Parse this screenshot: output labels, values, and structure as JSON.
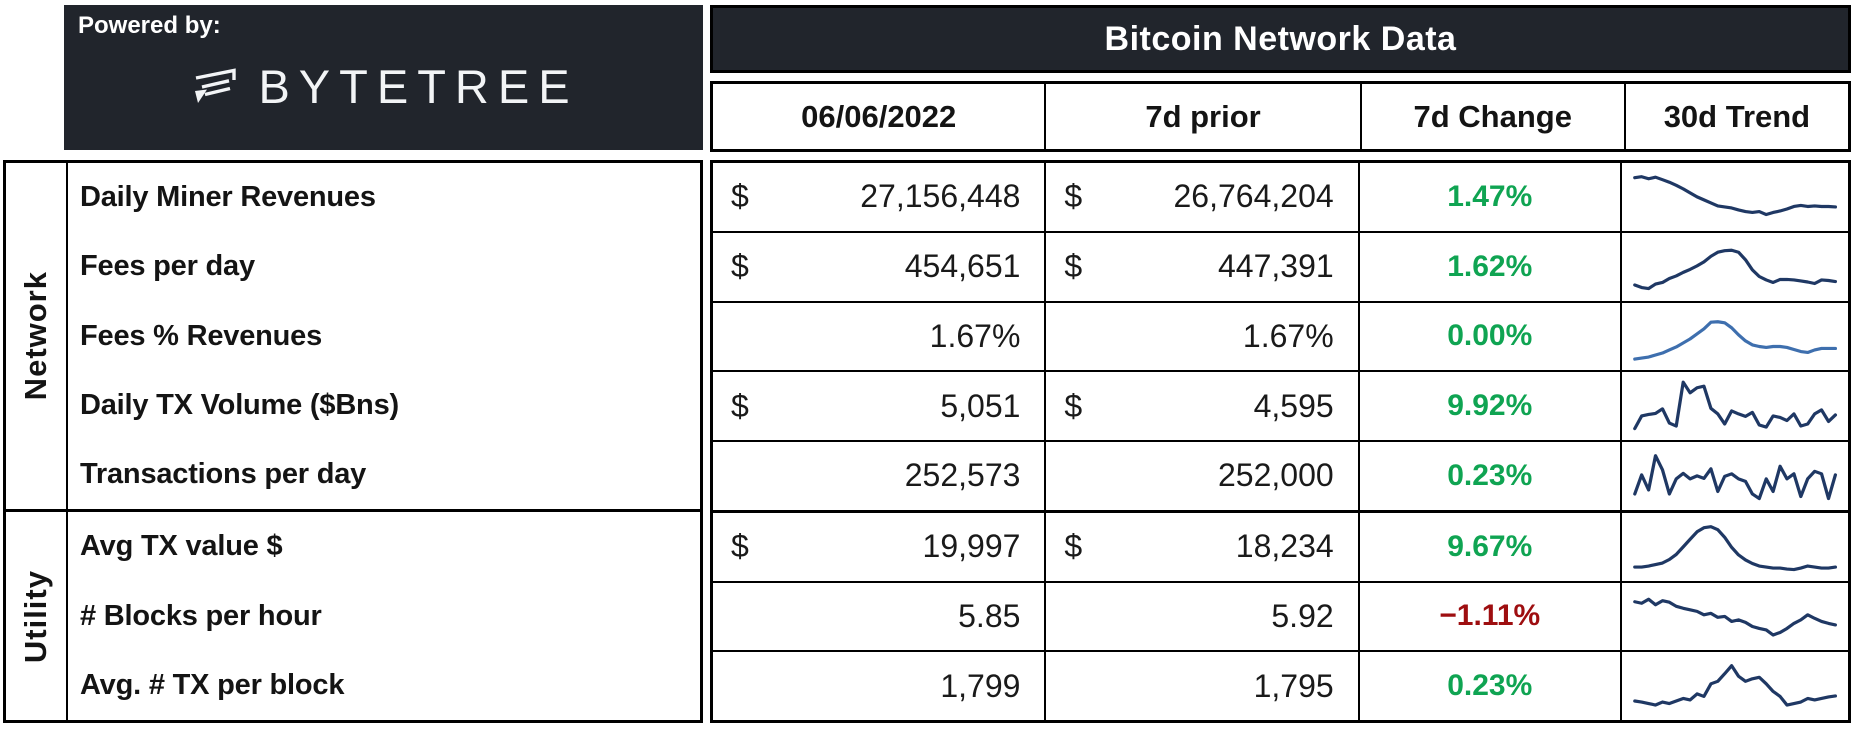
{
  "powered_by": {
    "label": "Powered by:",
    "brand": "BYTETREE"
  },
  "title": "Bitcoin Network Data",
  "columns": [
    "06/06/2022",
    "7d prior",
    "7d Change",
    "30d Trend"
  ],
  "groups": [
    {
      "label": "Network",
      "row_count": 5
    },
    {
      "label": "Utility",
      "row_count": 3
    }
  ],
  "rows": [
    {
      "label": "Daily Miner Revenues",
      "currency": "$",
      "current": "27,156,448",
      "prior": "26,764,204",
      "change": "1.47%",
      "change_type": "positive"
    },
    {
      "label": "Fees per day",
      "currency": "$",
      "current": "454,651",
      "prior": "447,391",
      "change": "1.62%",
      "change_type": "positive"
    },
    {
      "label": "Fees % Revenues",
      "currency": "",
      "current": "1.67%",
      "prior": "1.67%",
      "change": "0.00%",
      "change_type": "positive"
    },
    {
      "label": "Daily TX Volume ($Bns)",
      "currency": "$",
      "current": "5,051",
      "prior": "4,595",
      "change": "9.92%",
      "change_type": "positive"
    },
    {
      "label": "Transactions per day",
      "currency": "",
      "current": "252,573",
      "prior": "252,000",
      "change": "0.23%",
      "change_type": "positive"
    },
    {
      "label": "Avg TX value $",
      "currency": "$",
      "current": "19,997",
      "prior": "18,234",
      "change": "9.67%",
      "change_type": "positive"
    },
    {
      "label": "# Blocks per hour",
      "currency": "",
      "current": "5.85",
      "prior": "5.92",
      "change": "−1.11%",
      "change_type": "negative"
    },
    {
      "label": "Avg. # TX per block",
      "currency": "",
      "current": "1,799",
      "prior": "1,795",
      "change": "0.23%",
      "change_type": "positive"
    }
  ],
  "colors": {
    "positive": "#0fa452",
    "negative": "#9e0e10",
    "dark_panel": "#21252c",
    "sparkline_navy": "#1f3864",
    "sparkline_steel_blue": "#3e6fae",
    "border": "#000000"
  },
  "chart_data": {
    "type": "table",
    "title": "Bitcoin Network Data",
    "columns": [
      "06/06/2022",
      "7d prior",
      "7d Change",
      "30d Trend"
    ],
    "row_metrics": [
      "Daily Miner Revenues",
      "Fees per day",
      "Fees % Revenues",
      "Daily TX Volume ($Bns)",
      "Transactions per day",
      "Avg TX value $",
      "# Blocks per hour",
      "Avg. # TX per block"
    ],
    "sparklines": [
      {
        "name": "Daily Miner Revenues 30d trend",
        "type": "line",
        "color": "#1f3864",
        "y_scale": "normalized_0_100",
        "values": [
          88,
          90,
          86,
          89,
          84,
          79,
          73,
          66,
          58,
          50,
          44,
          38,
          32,
          30,
          28,
          24,
          21,
          19,
          21,
          15,
          19,
          22,
          26,
          31,
          33,
          31,
          32,
          31,
          31,
          30
        ]
      },
      {
        "name": "Fees per day 30d trend",
        "type": "line",
        "color": "#1f3864",
        "y_scale": "normalized_0_100",
        "values": [
          14,
          9,
          7,
          16,
          19,
          27,
          32,
          39,
          45,
          52,
          60,
          71,
          79,
          82,
          83,
          79,
          64,
          44,
          31,
          24,
          19,
          25,
          25,
          24,
          22,
          20,
          17,
          24,
          23,
          21
        ]
      },
      {
        "name": "Fees % Revenues 30d trend",
        "type": "line",
        "color": "#3e6fae",
        "y_scale": "normalized_0_100",
        "values": [
          6,
          8,
          10,
          14,
          18,
          24,
          30,
          38,
          46,
          56,
          66,
          79,
          80,
          78,
          68,
          54,
          42,
          34,
          31,
          29,
          31,
          31,
          29,
          25,
          21,
          19,
          24,
          27,
          27,
          27
        ]
      },
      {
        "name": "Daily TX Volume 30d trend",
        "type": "line",
        "color": "#1f3864",
        "y_scale": "normalized_0_100",
        "values": [
          5,
          30,
          33,
          35,
          44,
          16,
          10,
          97,
          76,
          86,
          89,
          45,
          34,
          14,
          40,
          34,
          29,
          37,
          12,
          8,
          30,
          27,
          21,
          34,
          10,
          14,
          34,
          42,
          19,
          32
        ]
      },
      {
        "name": "Transactions per day 30d trend",
        "type": "line",
        "color": "#1f3864",
        "y_scale": "normalized_0_100",
        "values": [
          14,
          52,
          22,
          90,
          62,
          14,
          44,
          55,
          44,
          50,
          45,
          64,
          19,
          49,
          54,
          44,
          39,
          14,
          5,
          44,
          19,
          69,
          44,
          54,
          9,
          44,
          59,
          54,
          5,
          52
        ]
      },
      {
        "name": "Avg TX value 30d trend",
        "type": "line",
        "color": "#1f3864",
        "y_scale": "normalized_0_100",
        "values": [
          10,
          10,
          12,
          15,
          18,
          25,
          35,
          50,
          65,
          80,
          88,
          90,
          84,
          69,
          49,
          34,
          24,
          17,
          12,
          10,
          8,
          8,
          6,
          5,
          8,
          12,
          10,
          8,
          8,
          10
        ]
      },
      {
        "name": "# Blocks per hour 30d trend",
        "type": "line",
        "color": "#1f3864",
        "y_scale": "normalized_0_100",
        "values": [
          80,
          77,
          85,
          74,
          82,
          79,
          71,
          67,
          64,
          61,
          54,
          57,
          49,
          51,
          41,
          44,
          39,
          31,
          27,
          24,
          14,
          19,
          27,
          37,
          44,
          54,
          47,
          41,
          37,
          34
        ]
      },
      {
        "name": "Avg. # TX per block 30d trend",
        "type": "line",
        "color": "#1f3864",
        "y_scale": "normalized_0_100",
        "values": [
          20,
          18,
          15,
          12,
          18,
          15,
          20,
          25,
          22,
          34,
          29,
          54,
          59,
          74,
          90,
          69,
          59,
          64,
          67,
          54,
          39,
          29,
          12,
          15,
          18,
          25,
          22,
          25,
          28,
          30
        ]
      }
    ]
  }
}
